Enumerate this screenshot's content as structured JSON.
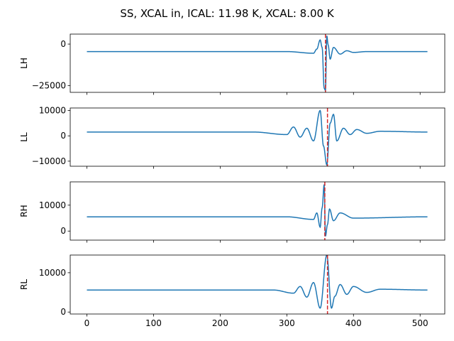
{
  "figure": {
    "title": "SS, XCAL in, ICAL: 11.98 K, XCAL: 8.00 K"
  },
  "chart_data": [
    {
      "type": "line",
      "ylabel": "LH",
      "xlim": [
        -25,
        537
      ],
      "ylim": [
        -29000,
        6000
      ],
      "yticks": [
        0,
        -25000
      ],
      "ytick_labels": [
        "0",
        "−25000"
      ],
      "xticks": [
        0,
        100,
        200,
        300,
        400,
        500
      ],
      "baseline": -4500,
      "peak_x": 358,
      "vline_x": 358,
      "series": [
        {
          "color": "#1f77b4",
          "keypoints": [
            [
              0,
              -4500
            ],
            [
              300,
              -4500
            ],
            [
              340,
              -5500
            ],
            [
              345,
              -3000
            ],
            [
              350,
              2500
            ],
            [
              353,
              -2000
            ],
            [
              356,
              -26500
            ],
            [
              358,
              -28000
            ],
            [
              360,
              5000
            ],
            [
              362,
              -500
            ],
            [
              365,
              -9000
            ],
            [
              370,
              -2000
            ],
            [
              380,
              -6000
            ],
            [
              390,
              -4000
            ],
            [
              400,
              -5000
            ],
            [
              420,
              -4500
            ],
            [
              511,
              -4500
            ]
          ]
        }
      ],
      "vline_color": "#d62728",
      "grid": false
    },
    {
      "type": "line",
      "ylabel": "LL",
      "xlim": [
        -25,
        537
      ],
      "ylim": [
        -12000,
        11000
      ],
      "yticks": [
        10000,
        0,
        -10000
      ],
      "ytick_labels": [
        "10000",
        "0",
        "−10000"
      ],
      "xticks": [
        0,
        100,
        200,
        300,
        400,
        500
      ],
      "baseline": 1500,
      "peak_x": 360,
      "vline_x": 361,
      "series": [
        {
          "color": "#1f77b4",
          "keypoints": [
            [
              0,
              1500
            ],
            [
              250,
              1500
            ],
            [
              300,
              500
            ],
            [
              310,
              3500
            ],
            [
              320,
              -500
            ],
            [
              330,
              3000
            ],
            [
              340,
              -2000
            ],
            [
              350,
              10000
            ],
            [
              355,
              -4000
            ],
            [
              360,
              -11500
            ],
            [
              365,
              5000
            ],
            [
              370,
              8500
            ],
            [
              375,
              -2000
            ],
            [
              385,
              3000
            ],
            [
              395,
              500
            ],
            [
              405,
              2500
            ],
            [
              420,
              1000
            ],
            [
              440,
              1800
            ],
            [
              511,
              1500
            ]
          ]
        }
      ],
      "vline_color": "#d62728",
      "grid": false
    },
    {
      "type": "line",
      "ylabel": "RH",
      "xlim": [
        -25,
        537
      ],
      "ylim": [
        -3500,
        19000
      ],
      "yticks": [
        10000,
        0
      ],
      "ytick_labels": [
        "10000",
        "0"
      ],
      "xticks": [
        0,
        100,
        200,
        300,
        400,
        500
      ],
      "baseline": 5500,
      "peak_x": 357,
      "vline_x": 357,
      "series": [
        {
          "color": "#1f77b4",
          "keypoints": [
            [
              0,
              5500
            ],
            [
              300,
              5500
            ],
            [
              340,
              4500
            ],
            [
              345,
              7000
            ],
            [
              350,
              1500
            ],
            [
              353,
              9000
            ],
            [
              356,
              18000
            ],
            [
              358,
              -2000
            ],
            [
              361,
              2500
            ],
            [
              364,
              8500
            ],
            [
              370,
              4000
            ],
            [
              380,
              7000
            ],
            [
              400,
              5000
            ],
            [
              511,
              5500
            ]
          ]
        }
      ],
      "vline_color": "#d62728",
      "grid": false
    },
    {
      "type": "line",
      "ylabel": "RL",
      "xlim": [
        -25,
        537
      ],
      "ylim": [
        -500,
        14500
      ],
      "yticks": [
        10000,
        0
      ],
      "ytick_labels": [
        "10000",
        "0"
      ],
      "xticks": [
        0,
        100,
        200,
        300,
        400,
        500
      ],
      "xtick_labels": [
        "0",
        "100",
        "200",
        "300",
        "400",
        "500"
      ],
      "baseline": 5600,
      "peak_x": 360,
      "vline_x": 361,
      "series": [
        {
          "color": "#1f77b4",
          "keypoints": [
            [
              0,
              5600
            ],
            [
              280,
              5600
            ],
            [
              310,
              4800
            ],
            [
              320,
              6500
            ],
            [
              330,
              3800
            ],
            [
              340,
              7500
            ],
            [
              350,
              1000
            ],
            [
              360,
              14500
            ],
            [
              367,
              1000
            ],
            [
              372,
              4000
            ],
            [
              380,
              7000
            ],
            [
              390,
              4500
            ],
            [
              400,
              6500
            ],
            [
              420,
              5000
            ],
            [
              440,
              5800
            ],
            [
              511,
              5600
            ]
          ]
        }
      ],
      "vline_color": "#d62728",
      "grid": false
    }
  ]
}
